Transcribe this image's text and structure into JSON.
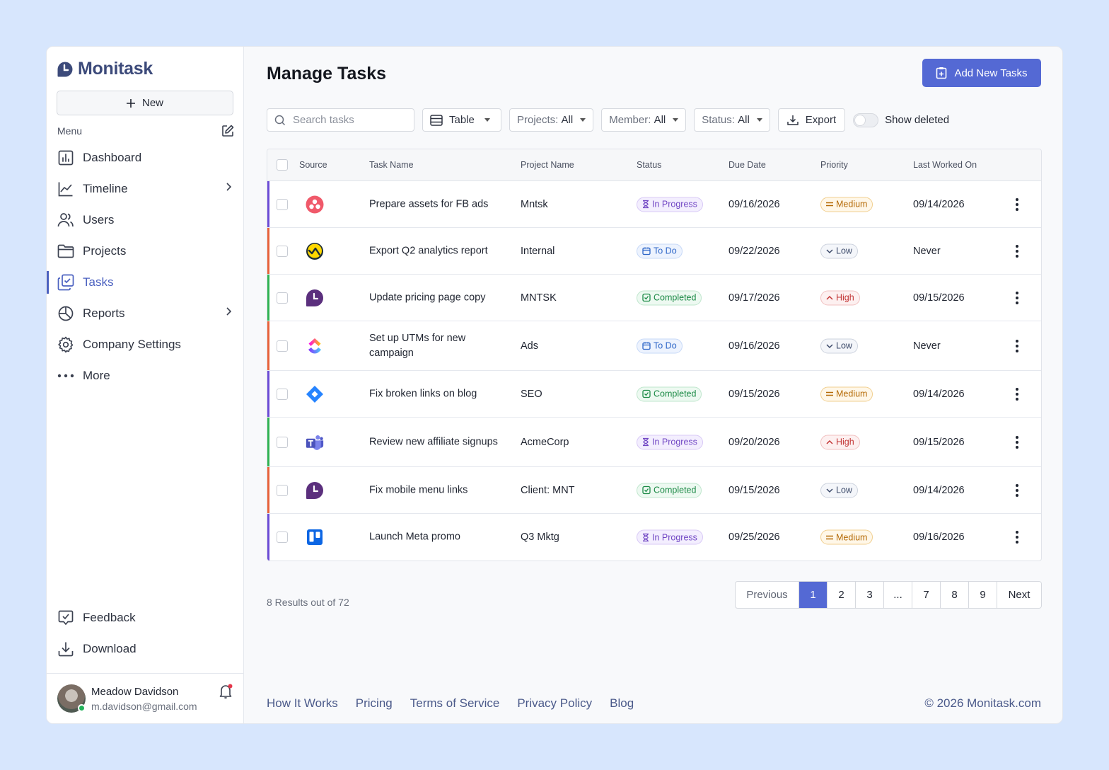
{
  "brand": {
    "name": "Monitask",
    "color": "#3c4a7a",
    "accent": "#5469d4"
  },
  "sidebar": {
    "new_label": "New",
    "menu_label": "Menu",
    "items": [
      {
        "label": "Dashboard",
        "icon": "dashboard-icon"
      },
      {
        "label": "Timeline",
        "icon": "timeline-icon",
        "expandable": true
      },
      {
        "label": "Users",
        "icon": "users-icon"
      },
      {
        "label": "Projects",
        "icon": "folder-icon"
      },
      {
        "label": "Tasks",
        "icon": "tasks-icon",
        "active": true
      },
      {
        "label": "Reports",
        "icon": "pie-chart-icon",
        "expandable": true
      },
      {
        "label": "Company Settings",
        "icon": "gear-icon"
      },
      {
        "label": "More",
        "icon": "more-icon"
      }
    ],
    "bottom_items": [
      {
        "label": "Feedback",
        "icon": "feedback-icon"
      },
      {
        "label": "Download",
        "icon": "download-icon"
      }
    ],
    "user": {
      "name": "Meadow Davidson",
      "email": "m.davidson@gmail.com"
    }
  },
  "header": {
    "title": "Manage Tasks",
    "add_label": "Add New Tasks"
  },
  "toolbar": {
    "search_placeholder": "Search tasks",
    "view": "Table",
    "projects_label": "Projects:",
    "projects_value": "All",
    "member_label": "Member:",
    "member_value": "All",
    "status_label": "Status:",
    "status_value": "All",
    "export_label": "Export",
    "show_deleted_label": "Show deleted"
  },
  "table": {
    "columns": [
      "Source",
      "Task Name",
      "Project Name",
      "Status",
      "Due Date",
      "Priority",
      "Last Worked On"
    ],
    "rows": [
      {
        "source": "asana-icon",
        "task": "Prepare assets for FB ads",
        "project": "Mntsk",
        "status": "In Progress",
        "due": "09/16/2026",
        "priority": "Medium",
        "last": "09/14/2026",
        "bar": "#6c4cd6"
      },
      {
        "source": "basecamp-icon",
        "task": "Export Q2 analytics report",
        "project": "Internal",
        "status": "To Do",
        "due": "09/22/2026",
        "priority": "Low",
        "last": "Never",
        "bar": "#e8623a"
      },
      {
        "source": "monitask-icon",
        "task": "Update pricing page copy",
        "project": "MNTSK",
        "status": "Completed",
        "due": "09/17/2026",
        "priority": "High",
        "last": "09/15/2026",
        "bar": "#2fb352"
      },
      {
        "source": "clickup-icon",
        "task": "Set up UTMs for new campaign",
        "project": "Ads",
        "status": "To Do",
        "due": "09/16/2026",
        "priority": "Low",
        "last": "Never",
        "bar": "#e8623a"
      },
      {
        "source": "jira-icon",
        "task": "Fix broken links on blog",
        "project": "SEO",
        "status": "Completed",
        "due": "09/15/2026",
        "priority": "Medium",
        "last": "09/14/2026",
        "bar": "#6c4cd6"
      },
      {
        "source": "teams-icon",
        "task": "Review new affiliate signups",
        "project": "AcmeCorp",
        "status": "In Progress",
        "due": "09/20/2026",
        "priority": "High",
        "last": "09/15/2026",
        "bar": "#2fb352"
      },
      {
        "source": "monitask-icon",
        "task": "Fix mobile menu links",
        "project": "Client: MNT",
        "status": "Completed",
        "due": "09/15/2026",
        "priority": "Low",
        "last": "09/14/2026",
        "bar": "#e8623a"
      },
      {
        "source": "trello-icon",
        "task": "Launch Meta promo",
        "project": "Q3 Mktg",
        "status": "In Progress",
        "due": "09/25/2026",
        "priority": "Medium",
        "last": "09/16/2026",
        "bar": "#6c4cd6"
      }
    ]
  },
  "pagination": {
    "results_text": "8 Results out of 72",
    "prev": "Previous",
    "next": "Next",
    "pages": [
      "1",
      "2",
      "3",
      "...",
      "7",
      "8",
      "9"
    ],
    "current": "1"
  },
  "footer": {
    "links": [
      "How It Works",
      "Pricing",
      "Terms of Service",
      "Privacy Policy",
      "Blog"
    ],
    "copyright": "© 2026 Monitask.com"
  }
}
